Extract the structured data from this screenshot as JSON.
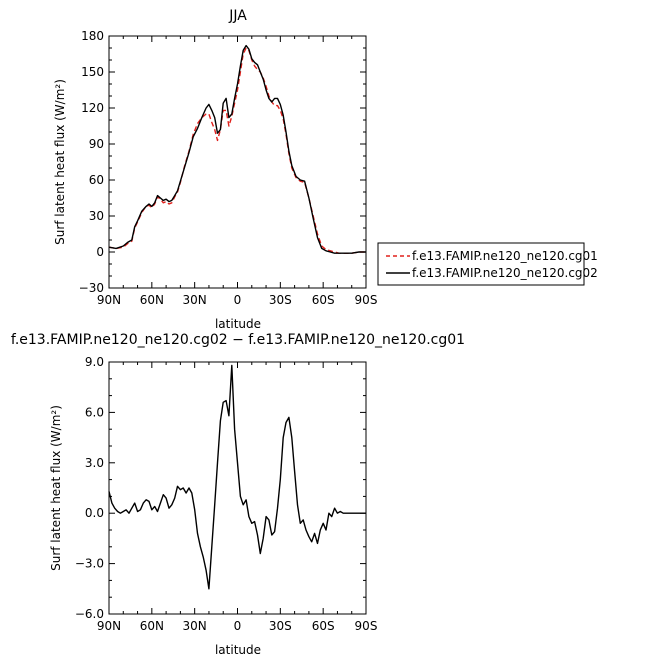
{
  "chart_data": [
    {
      "type": "line",
      "title": "JJA",
      "xlabel": "latitude",
      "ylabel": "Surf latent heat flux (W/m²)",
      "xlim": [
        90,
        -90
      ],
      "ylim": [
        -30,
        180
      ],
      "x_ticks": [
        90,
        60,
        30,
        0,
        -30,
        -60,
        -90
      ],
      "x_tick_labels": [
        "90N",
        "60N",
        "30N",
        "0",
        "30S",
        "60S",
        "90S"
      ],
      "y_ticks": [
        -30,
        0,
        30,
        60,
        90,
        120,
        150,
        180
      ],
      "y_tick_labels": [
        "−30",
        "0",
        "30",
        "60",
        "90",
        "120",
        "150",
        "180"
      ],
      "legend": [
        "f.e13.FAMIP.ne120_ne120.cg01",
        "f.e13.FAMIP.ne120_ne120.cg02"
      ],
      "legend_position": "right",
      "series": [
        {
          "name": "f.e13.FAMIP.ne120_ne120.cg01",
          "color": "#e0201c",
          "dash": true,
          "x": [
            90,
            85,
            80,
            77,
            74,
            72,
            70,
            67,
            64,
            62,
            60,
            58,
            56,
            54,
            52,
            50,
            48,
            46,
            44,
            42,
            40,
            37,
            34,
            31,
            28,
            25,
            22,
            20,
            18,
            16,
            14,
            12,
            10,
            8,
            6,
            4,
            2,
            0,
            -2,
            -4,
            -6,
            -8,
            -10,
            -12,
            -14,
            -16,
            -18,
            -20,
            -22,
            -24,
            -26,
            -28,
            -30,
            -32,
            -34,
            -36,
            -38,
            -41,
            -44,
            -47,
            -50,
            -53,
            -56,
            -59,
            -62,
            -65,
            -68,
            -71,
            -74,
            -77,
            -80,
            -85,
            -90
          ],
          "y": [
            4,
            3,
            4,
            7,
            9,
            20,
            25,
            33,
            38,
            39,
            37,
            40,
            46,
            44,
            41,
            42,
            40,
            41,
            46,
            50,
            58,
            72,
            84,
            98,
            107,
            112,
            115,
            115,
            108,
            102,
            93,
            102,
            118,
            118,
            105,
            113,
            124,
            135,
            150,
            165,
            170,
            168,
            160,
            155,
            152,
            150,
            145,
            138,
            130,
            125,
            122,
            122,
            118,
            111,
            98,
            82,
            70,
            62,
            59,
            58,
            45,
            30,
            15,
            5,
            2,
            1,
            0,
            -1,
            -1,
            -1,
            -1,
            0,
            0
          ]
        },
        {
          "name": "f.e13.FAMIP.ne120_ne120.cg02",
          "color": "#000000",
          "dash": false,
          "x": [
            90,
            85,
            80,
            77,
            74,
            72,
            70,
            67,
            64,
            62,
            60,
            58,
            56,
            54,
            52,
            50,
            48,
            46,
            44,
            42,
            40,
            37,
            34,
            31,
            28,
            25,
            22,
            20,
            18,
            16,
            14,
            12,
            10,
            8,
            6,
            4,
            2,
            0,
            -2,
            -4,
            -6,
            -8,
            -10,
            -12,
            -14,
            -16,
            -18,
            -20,
            -22,
            -24,
            -26,
            -28,
            -30,
            -32,
            -34,
            -36,
            -38,
            -41,
            -44,
            -47,
            -50,
            -53,
            -56,
            -59,
            -62,
            -65,
            -68,
            -71,
            -74,
            -77,
            -80,
            -85,
            -90
          ],
          "y": [
            4,
            3,
            5,
            8,
            10,
            21,
            26,
            34,
            38,
            40,
            38,
            41,
            47,
            45,
            43,
            44,
            42,
            43,
            47,
            51,
            59,
            71,
            83,
            96,
            103,
            112,
            120,
            123,
            118,
            112,
            99,
            102,
            124,
            128,
            112,
            115,
            128,
            140,
            155,
            168,
            172,
            169,
            161,
            158,
            156,
            150,
            144,
            135,
            128,
            125,
            128,
            128,
            123,
            114,
            100,
            84,
            72,
            63,
            60,
            59,
            45,
            28,
            12,
            3,
            1,
            0,
            -1,
            -1,
            -1,
            -1,
            -1,
            0,
            0
          ]
        }
      ]
    },
    {
      "type": "line",
      "title": "f.e13.FAMIP.ne120_ne120.cg02 − f.e13.FAMIP.ne120_ne120.cg01",
      "xlabel": "latitude",
      "ylabel": "Surf latent heat flux (W/m²)",
      "xlim": [
        90,
        -90
      ],
      "ylim": [
        -6,
        9
      ],
      "x_ticks": [
        90,
        60,
        30,
        0,
        -30,
        -60,
        -90
      ],
      "x_tick_labels": [
        "90N",
        "60N",
        "30N",
        "0",
        "30S",
        "60S",
        "90S"
      ],
      "y_ticks": [
        -6,
        -3,
        0,
        3,
        6,
        9
      ],
      "y_tick_labels": [
        "−6.0",
        "−3.0",
        "0.0",
        "3.0",
        "6.0",
        "9.0"
      ],
      "series": [
        {
          "color": "#000000",
          "x": [
            90,
            88,
            86,
            84,
            82,
            80,
            78,
            76,
            74,
            72,
            70,
            68,
            66,
            64,
            62,
            60,
            58,
            56,
            54,
            52,
            50,
            48,
            46,
            44,
            42,
            40,
            38,
            36,
            34,
            32,
            30,
            28,
            26,
            24,
            22,
            20,
            18,
            16,
            14,
            12,
            10,
            8,
            6,
            4,
            2,
            0,
            -2,
            -4,
            -6,
            -8,
            -10,
            -12,
            -14,
            -16,
            -18,
            -20,
            -22,
            -24,
            -26,
            -28,
            -30,
            -32,
            -34,
            -36,
            -38,
            -40,
            -42,
            -44,
            -46,
            -48,
            -50,
            -52,
            -54,
            -56,
            -58,
            -60,
            -62,
            -64,
            -66,
            -68,
            -70,
            -72,
            -74,
            -76,
            -78,
            -80,
            -84,
            -88,
            -90
          ],
          "y": [
            1.3,
            0.6,
            0.3,
            0.1,
            0.0,
            0.1,
            0.2,
            0.0,
            0.3,
            0.6,
            0.1,
            0.2,
            0.6,
            0.8,
            0.7,
            0.2,
            0.4,
            0.1,
            0.6,
            1.1,
            0.9,
            0.3,
            0.5,
            0.9,
            1.6,
            1.4,
            1.5,
            1.2,
            1.5,
            1.2,
            0.2,
            -1.2,
            -2.0,
            -2.6,
            -3.4,
            -4.5,
            -2.0,
            0.5,
            3.0,
            5.5,
            6.6,
            6.7,
            5.8,
            8.8,
            5.0,
            3.0,
            1.0,
            0.5,
            0.8,
            -0.2,
            -0.6,
            -0.5,
            -1.3,
            -2.4,
            -1.5,
            -0.2,
            -0.4,
            -1.3,
            -1.1,
            0.3,
            2.0,
            4.5,
            5.4,
            5.7,
            4.5,
            2.5,
            0.5,
            -0.6,
            -0.4,
            -1.0,
            -1.4,
            -1.7,
            -1.2,
            -1.8,
            -1.0,
            -0.6,
            -1.0,
            0.0,
            -0.2,
            0.3,
            0.0,
            0.1,
            0.0,
            0.0,
            0.0,
            0.0,
            0.0,
            0.0,
            0.0
          ]
        }
      ]
    }
  ]
}
